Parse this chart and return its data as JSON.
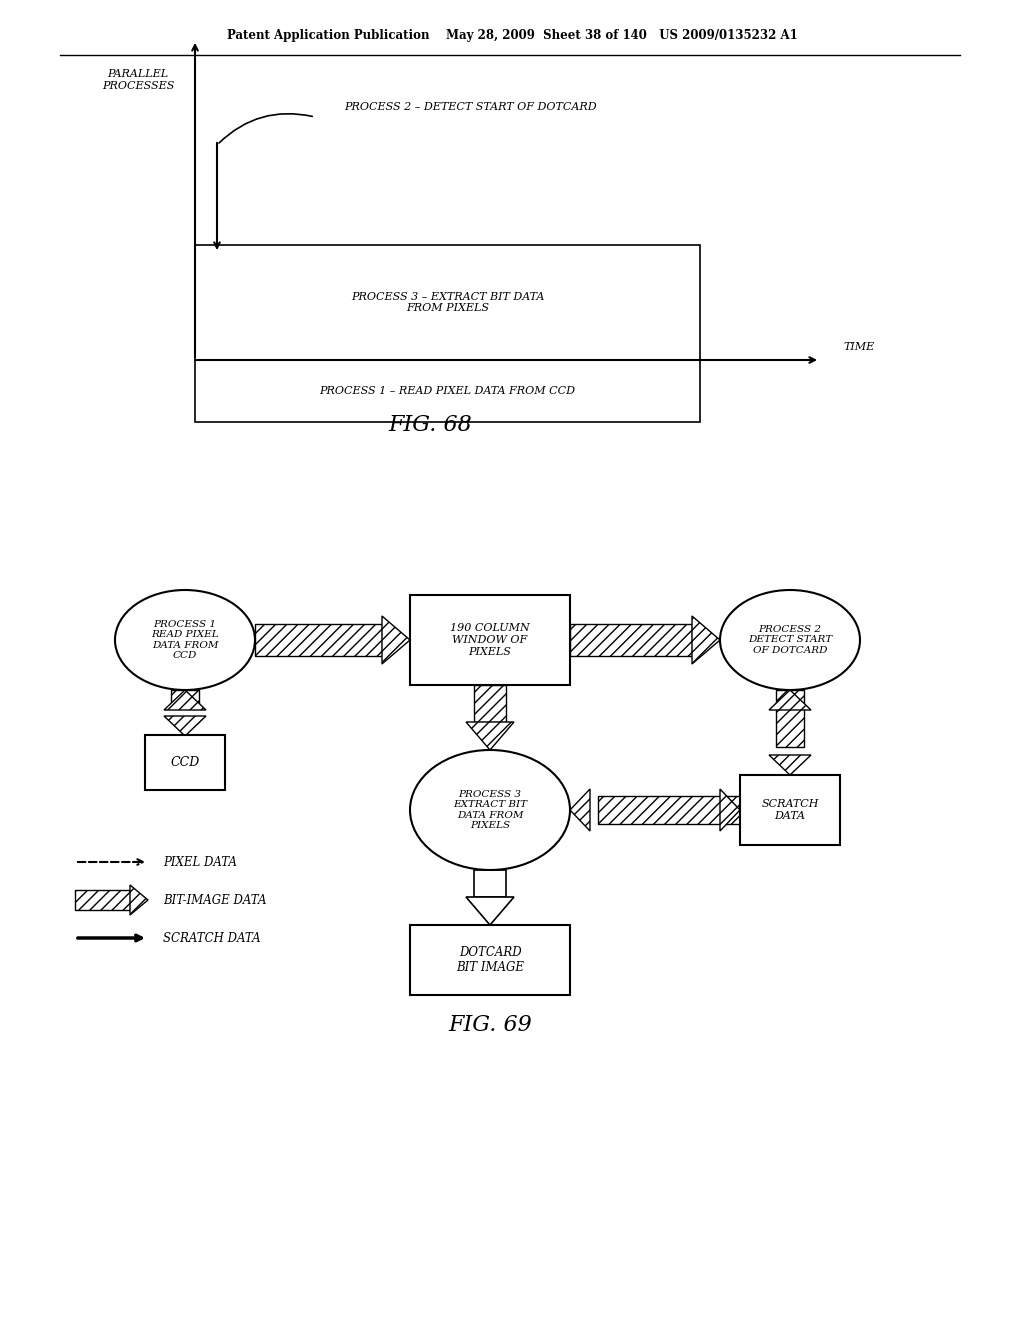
{
  "bg_color": "#ffffff",
  "header_text": "Patent Application Publication    May 28, 2009  Sheet 38 of 140   US 2009/0135232 A1",
  "fig68_title": "FIG. 68",
  "fig69_title": "FIG. 69",
  "parallel_label": "PARALLEL\nPROCESSES",
  "time_label": "TIME",
  "p1_label": "PROCESS 1 – READ PIXEL DATA FROM CCD",
  "p3_label": "PROCESS 3 – EXTRACT BIT DATA\nFROM PIXELS",
  "p2_label": "PROCESS 2 – DETECT START OF DOTCARD",
  "proc1_label": "PROCESS 1\nREAD PIXEL\nDATA FROM\nCCD",
  "window_label": "190 COLUMN\nWINDOW OF\nPIXELS",
  "proc2_label": "PROCESS 2\nDETECT START\nOF DOTCARD",
  "proc3_label": "PROCESS 3\nEXTRACT BIT\nDATA FROM\nPIXELS",
  "ccd_label": "CCD",
  "scratch_label": "SCRATCH\nDATA",
  "dotcard_label": "DOTCARD\nBIT IMAGE",
  "leg1": "PIXEL DATA",
  "leg2": "BIT-IMAGE DATA",
  "leg3": "SCRATCH DATA"
}
